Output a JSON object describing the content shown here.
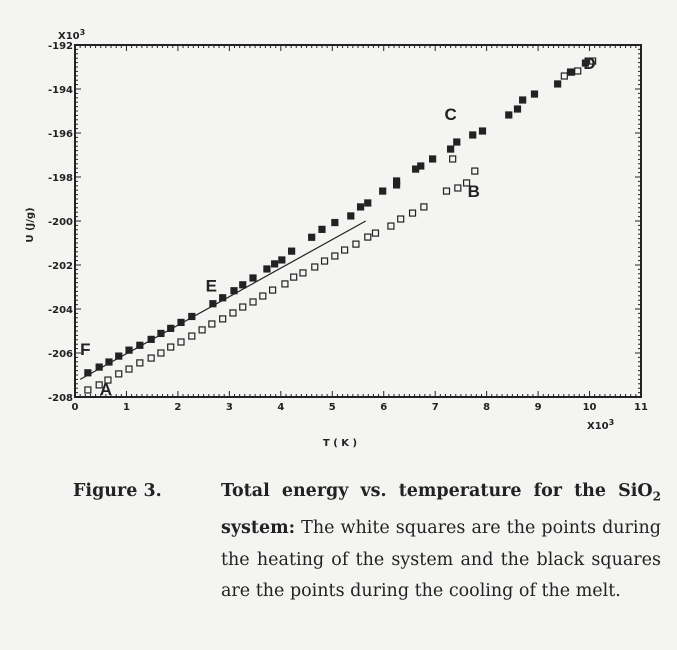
{
  "chart_data": {
    "type": "scatter",
    "xlabel": "T ( K )",
    "ylabel": "U (J/g)",
    "x_multiplier_label": "X10",
    "x_multiplier_exp": "3",
    "y_multiplier_label": "X10",
    "y_multiplier_exp": "3",
    "xlim": [
      0,
      11
    ],
    "ylim": [
      -208,
      -192
    ],
    "x_ticks": [
      "0",
      "1",
      "2",
      "3",
      "4",
      "5",
      "6",
      "7",
      "8",
      "9",
      "10",
      "11"
    ],
    "y_ticks": [
      "-192",
      "-194",
      "-196",
      "-198",
      "-200",
      "-202",
      "-204",
      "-206",
      "-208"
    ],
    "grid": false,
    "series": [
      {
        "marker": "open-square",
        "color": "#222222",
        "x": [
          0.25,
          0.47,
          0.64,
          0.85,
          1.05,
          1.26,
          1.48,
          1.67,
          1.86,
          2.06,
          2.27,
          2.47,
          2.66,
          2.87,
          3.07,
          3.26,
          3.46,
          3.65,
          3.84,
          4.08,
          4.25,
          4.43,
          4.66,
          4.85,
          5.05,
          5.24,
          5.46,
          5.69,
          5.84,
          6.14,
          6.33,
          6.56,
          6.78,
          7.22,
          7.44,
          7.61,
          7.77,
          7.34,
          9.51,
          9.65,
          9.77,
          10.06
        ],
        "y": [
          -207.68,
          -207.45,
          -207.23,
          -206.95,
          -206.73,
          -206.45,
          -206.23,
          -206.0,
          -205.73,
          -205.5,
          -205.23,
          -204.95,
          -204.68,
          -204.45,
          -204.18,
          -203.91,
          -203.68,
          -203.41,
          -203.14,
          -202.86,
          -202.55,
          -202.36,
          -202.09,
          -201.82,
          -201.59,
          -201.32,
          -201.05,
          -200.73,
          -200.55,
          -200.23,
          -199.91,
          -199.64,
          -199.36,
          -198.64,
          -198.5,
          -198.27,
          -197.73,
          -197.18,
          -193.41,
          -193.23,
          -193.18,
          -192.73
        ]
      },
      {
        "marker": "filled-square",
        "color": "#222222",
        "x": [
          0.25,
          0.47,
          0.66,
          0.85,
          1.05,
          1.26,
          1.48,
          1.67,
          1.86,
          2.06,
          2.27,
          2.68,
          2.87,
          3.09,
          3.26,
          3.46,
          3.73,
          3.88,
          4.02,
          4.21,
          4.6,
          4.8,
          5.05,
          5.36,
          5.55,
          5.69,
          5.98,
          6.25,
          6.25,
          6.62,
          6.72,
          6.95,
          7.3,
          7.42,
          7.73,
          7.92,
          8.43,
          8.6,
          8.7,
          8.93,
          9.38,
          9.63,
          9.92
        ],
        "y": [
          -206.9,
          -206.64,
          -206.41,
          -206.14,
          -205.87,
          -205.65,
          -205.38,
          -205.11,
          -204.88,
          -204.61,
          -204.34,
          -203.76,
          -203.49,
          -203.17,
          -202.9,
          -202.59,
          -202.18,
          -201.95,
          -201.77,
          -201.37,
          -200.74,
          -200.38,
          -200.07,
          -199.77,
          -199.36,
          -199.18,
          -198.64,
          -198.36,
          -198.18,
          -197.64,
          -197.5,
          -197.18,
          -196.73,
          -196.41,
          -196.09,
          -195.91,
          -195.18,
          -194.91,
          -194.5,
          -194.23,
          -193.77,
          -193.23,
          -192.82
        ]
      }
    ],
    "fit_line": {
      "x": [
        0.1,
        5.65
      ],
      "y": [
        -207.2,
        -200.0
      ]
    },
    "annotations": [
      {
        "text": "F",
        "x": 0.2,
        "y": -206.1
      },
      {
        "text": "A",
        "x": 0.6,
        "y": -207.9
      },
      {
        "text": "E",
        "x": 2.65,
        "y": -203.2
      },
      {
        "text": "C",
        "x": 7.3,
        "y": -195.4
      },
      {
        "text": "B",
        "x": 7.75,
        "y": -198.9
      },
      {
        "text": "D",
        "x": 10.0,
        "y": -193.1
      }
    ]
  },
  "caption": {
    "label": "Figure 3.",
    "title_part1": "Total energy vs. temperature for the SiO",
    "title_subscript": "2",
    "title_part2": " system:",
    "body": " The white squares are the points during the heating of the system and the black squares are the points during the cooling of the melt."
  }
}
